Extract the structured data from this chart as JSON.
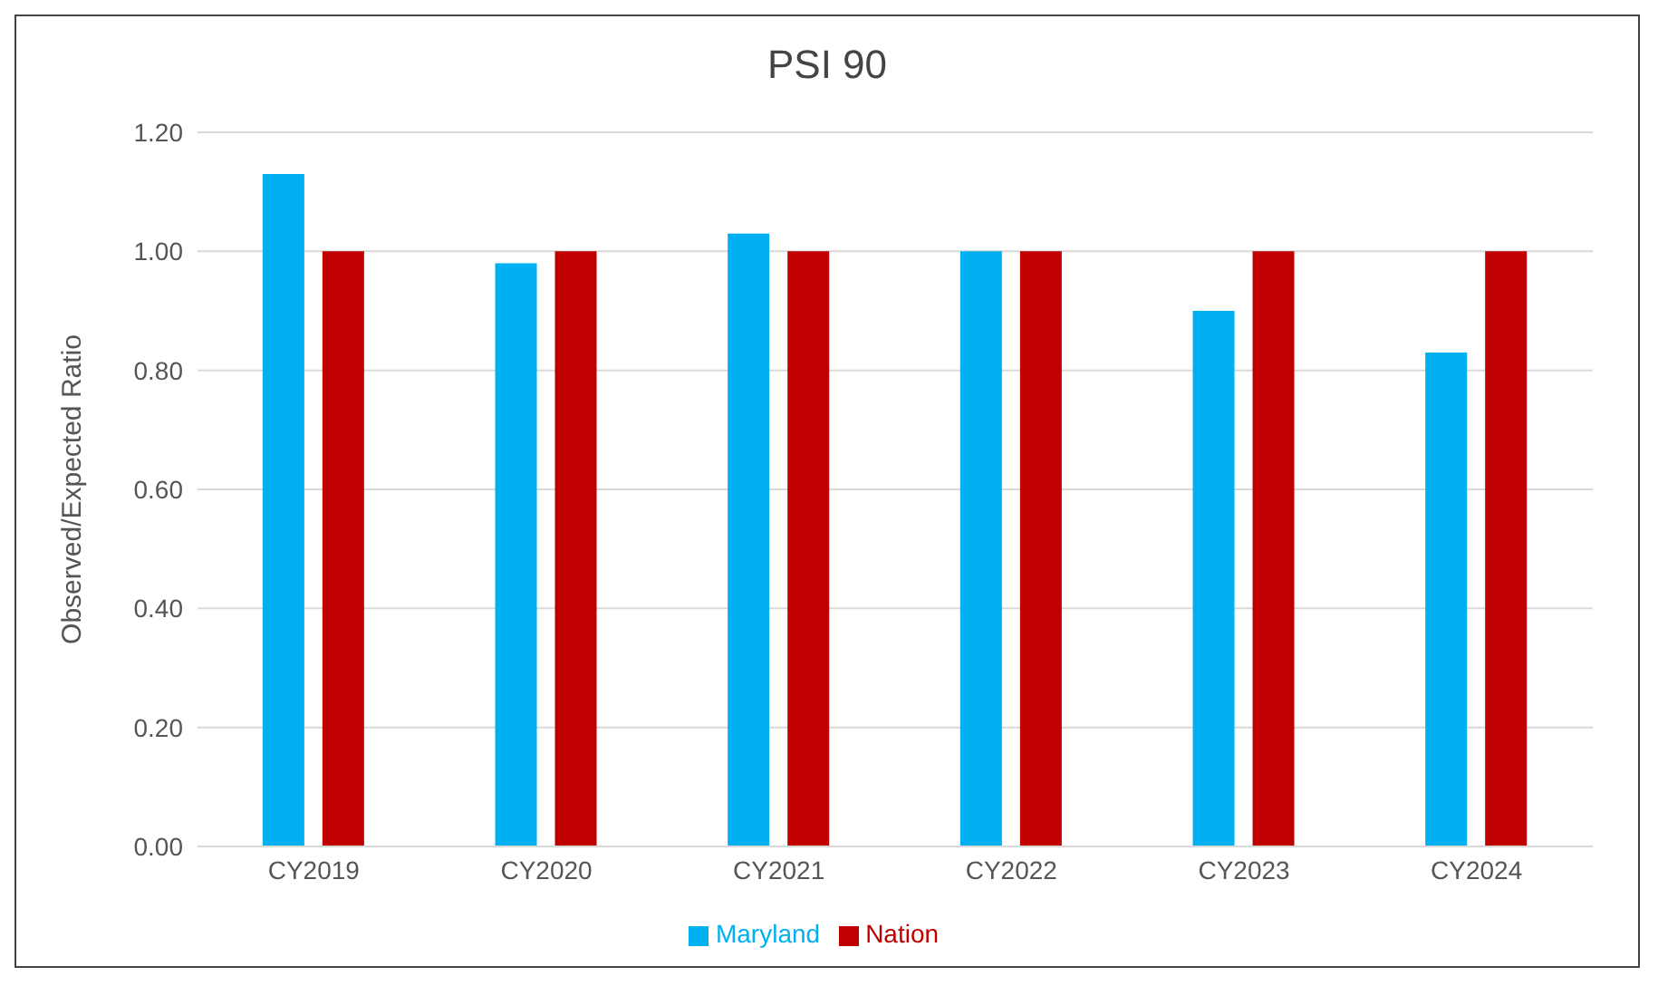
{
  "chart_data": {
    "type": "bar",
    "title": "PSI 90",
    "ylabel": "Observed/Expected Ratio",
    "categories": [
      "CY2019",
      "CY2020",
      "CY2021",
      "CY2022",
      "CY2023",
      "CY2024"
    ],
    "series": [
      {
        "name": "Maryland",
        "color": "#00b0f0",
        "values": [
          1.13,
          0.98,
          1.03,
          1.0,
          0.9,
          0.83
        ]
      },
      {
        "name": "Nation",
        "color": "#c00000",
        "values": [
          1.0,
          1.0,
          1.0,
          1.0,
          1.0,
          1.0
        ]
      }
    ],
    "ylim": [
      0,
      1.2
    ],
    "yticks": [
      {
        "value": 0,
        "label": "0.00"
      },
      {
        "value": 0.2,
        "label": "0.20"
      },
      {
        "value": 0.4,
        "label": "0.40"
      },
      {
        "value": 0.6,
        "label": "0.60"
      },
      {
        "value": 0.8,
        "label": "0.80"
      },
      {
        "value": 1,
        "label": "1.00"
      },
      {
        "value": 1.2,
        "label": "1.20"
      }
    ],
    "grid": "y",
    "legend": "bottom"
  }
}
